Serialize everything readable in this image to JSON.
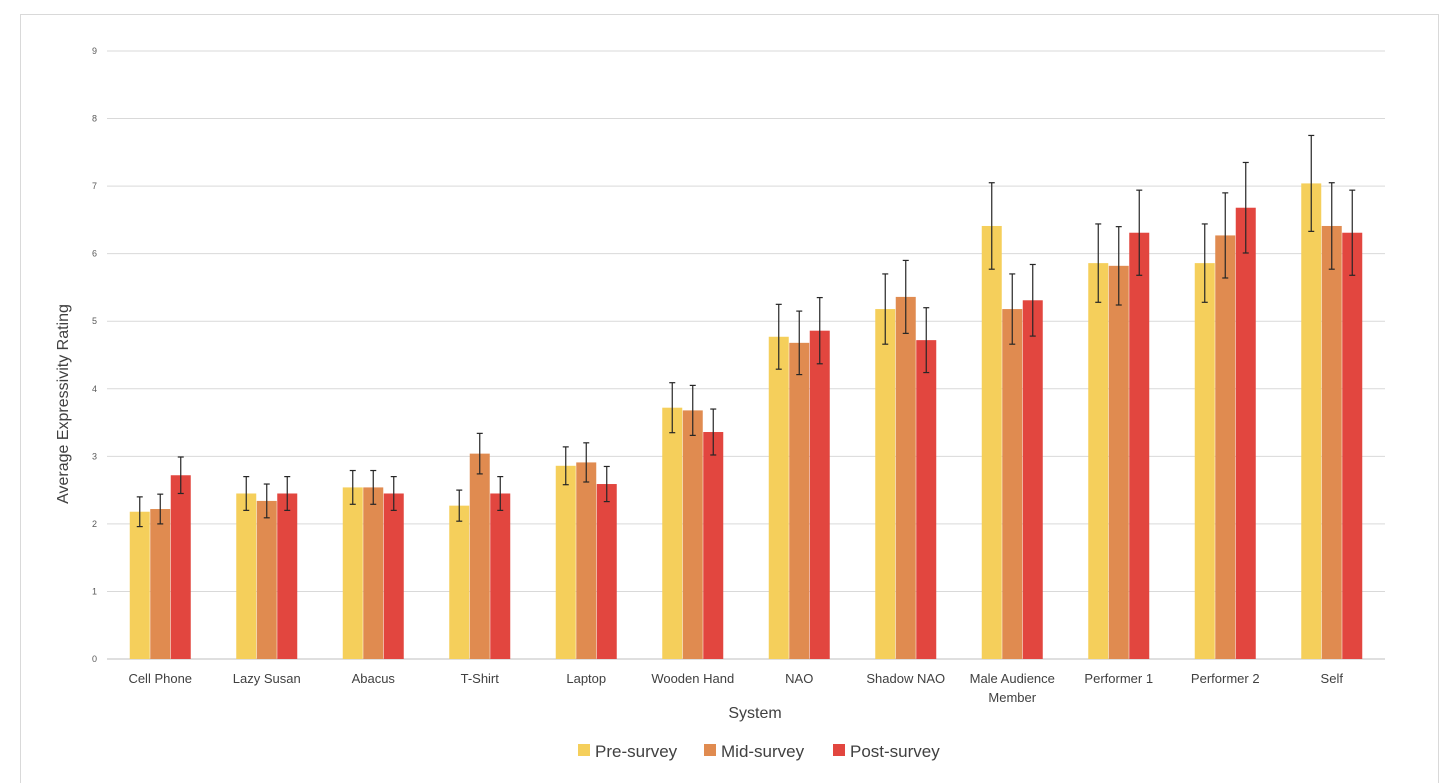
{
  "chart_data": {
    "type": "bar",
    "title": "",
    "xlabel": "System",
    "ylabel": "Average Expressivity Rating",
    "ylim": [
      0,
      9
    ],
    "yticks": [
      0,
      1,
      2,
      3,
      4,
      5,
      6,
      7,
      8,
      9
    ],
    "grid": true,
    "legend_position": "bottom",
    "categories": [
      "Cell Phone",
      "Lazy Susan",
      "Abacus",
      "T-Shirt",
      "Laptop",
      "Wooden Hand",
      "NAO",
      "Shadow NAO",
      "Male Audience Member",
      "Performer 1",
      "Performer 2",
      "Self"
    ],
    "series": [
      {
        "name": "Pre-survey",
        "color": "#F5CF5B",
        "values": [
          2.18,
          2.45,
          2.54,
          2.27,
          2.86,
          3.72,
          4.77,
          5.18,
          6.41,
          5.86,
          5.86,
          7.04
        ],
        "errors": [
          0.22,
          0.25,
          0.25,
          0.23,
          0.28,
          0.37,
          0.48,
          0.52,
          0.64,
          0.58,
          0.58,
          0.71
        ]
      },
      {
        "name": "Mid-survey",
        "color": "#E08B50",
        "values": [
          2.22,
          2.34,
          2.54,
          3.04,
          2.91,
          3.68,
          4.68,
          5.36,
          5.18,
          5.82,
          6.27,
          6.41
        ],
        "errors": [
          0.22,
          0.25,
          0.25,
          0.3,
          0.29,
          0.37,
          0.47,
          0.54,
          0.52,
          0.58,
          0.63,
          0.64
        ]
      },
      {
        "name": "Post-survey",
        "color": "#E2463F",
        "values": [
          2.72,
          2.45,
          2.45,
          2.45,
          2.59,
          3.36,
          4.86,
          4.72,
          5.31,
          6.31,
          6.68,
          6.31
        ],
        "errors": [
          0.27,
          0.25,
          0.25,
          0.25,
          0.26,
          0.34,
          0.49,
          0.48,
          0.53,
          0.63,
          0.67,
          0.63
        ]
      }
    ]
  }
}
